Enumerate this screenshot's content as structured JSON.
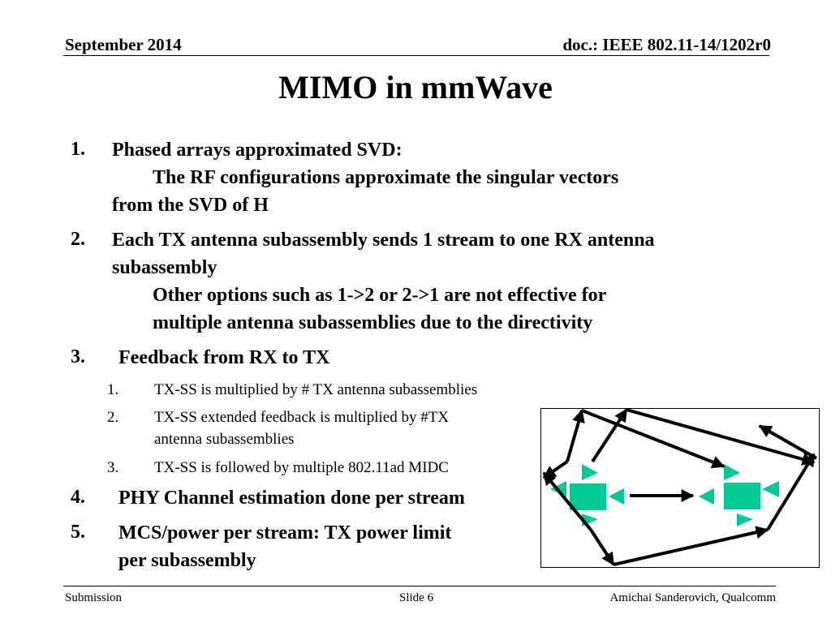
{
  "header": {
    "date": "September 2014",
    "doc_id": "doc.: IEEE 802.11-14/1202r0"
  },
  "title": "MIMO in mmWave",
  "list": [
    {
      "num": "1.",
      "text": "Phased arrays approximated SVD:",
      "sub": "The RF configurations approximate the singular vectors",
      "sub_cont": "from the SVD of H"
    },
    {
      "num": "2.",
      "text": "Each TX antenna subassembly sends 1 stream to one RX antenna",
      "text_cont": "subassembly",
      "sub": "Other options such as 1->2 or 2->1 are not effective for",
      "sub_cont": "multiple antenna subassemblies due to the directivity"
    },
    {
      "num": "3.",
      "text": "Feedback from RX to TX",
      "subitems": [
        {
          "num": "1.",
          "text": "TX-SS is multiplied by # TX antenna subassemblies"
        },
        {
          "num": "2.",
          "text": "TX-SS extended feedback is multiplied by #TX",
          "text_cont": "antenna subassemblies"
        },
        {
          "num": "3.",
          "text": "TX-SS is followed by multiple 802.11ad MIDC"
        }
      ]
    },
    {
      "num": "4.",
      "text": "PHY Channel estimation done per stream"
    },
    {
      "num": "5.",
      "text": "MCS/power per stream: TX power limit",
      "text_cont": "per subassembly"
    }
  ],
  "footer": {
    "left": "Submission",
    "center": "Slide 6",
    "right": "Amichai Sanderovich, Qualcomm"
  },
  "diagram": {
    "accent_color": "#00c896",
    "line_color": "#000000"
  }
}
